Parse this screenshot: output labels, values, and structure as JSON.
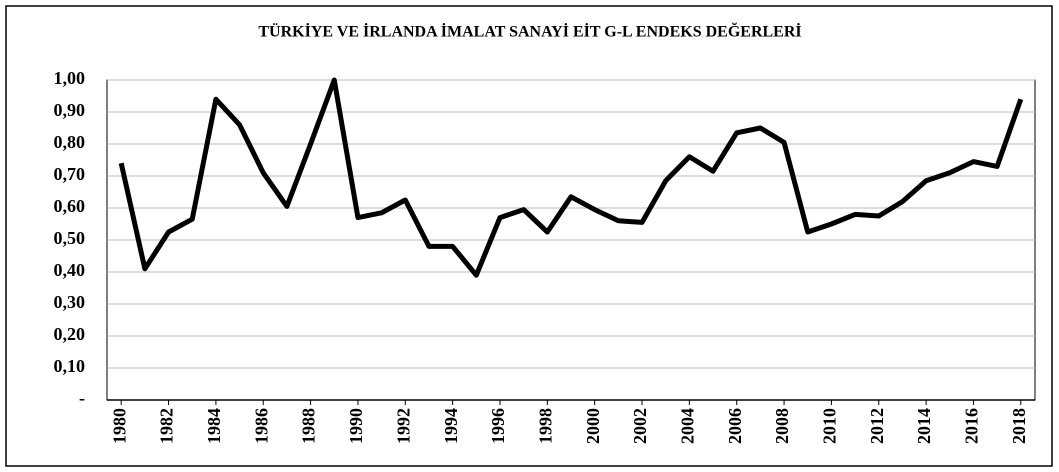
{
  "chart_data": {
    "type": "line",
    "title": "TÜRKİYE VE İRLANDA İMALAT SANAYİ EİT G-L ENDEKS DEĞERLERİ",
    "x": [
      1980,
      1981,
      1982,
      1983,
      1984,
      1985,
      1986,
      1987,
      1988,
      1989,
      1990,
      1991,
      1992,
      1993,
      1994,
      1995,
      1996,
      1997,
      1998,
      1999,
      2000,
      2001,
      2002,
      2003,
      2004,
      2005,
      2006,
      2007,
      2008,
      2009,
      2010,
      2011,
      2012,
      2013,
      2014,
      2015,
      2016,
      2017,
      2018
    ],
    "series": [
      {
        "color": "#000000",
        "values": [
          0.74,
          0.41,
          0.525,
          0.565,
          0.94,
          0.86,
          0.71,
          0.605,
          0.8,
          1.0,
          0.57,
          0.585,
          0.625,
          0.48,
          0.48,
          0.39,
          0.57,
          0.595,
          0.525,
          0.635,
          0.595,
          0.56,
          0.555,
          0.685,
          0.76,
          0.715,
          0.835,
          0.85,
          0.805,
          0.525,
          0.55,
          0.58,
          0.575,
          0.62,
          0.685,
          0.71,
          0.745,
          0.73,
          0.94
        ]
      }
    ],
    "xlim": [
      1979.4,
      2018.6
    ],
    "xticks": [
      1980,
      1982,
      1984,
      1986,
      1988,
      1990,
      1992,
      1994,
      1996,
      1998,
      2000,
      2002,
      2004,
      2006,
      2008,
      2010,
      2012,
      2014,
      2016,
      2018
    ],
    "ylim": [
      0,
      1
    ],
    "yticks": [
      {
        "value": 0,
        "label": "-"
      },
      {
        "value": 0.1,
        "label": "0,10"
      },
      {
        "value": 0.2,
        "label": "0,20"
      },
      {
        "value": 0.3,
        "label": "0,30"
      },
      {
        "value": 0.4,
        "label": "0,40"
      },
      {
        "value": 0.5,
        "label": "0,50"
      },
      {
        "value": 0.6,
        "label": "0,60"
      },
      {
        "value": 0.7,
        "label": "0,70"
      },
      {
        "value": 0.8,
        "label": "0,80"
      },
      {
        "value": 0.9,
        "label": "0,90"
      },
      {
        "value": 1,
        "label": "1,00"
      }
    ],
    "grid": true
  }
}
